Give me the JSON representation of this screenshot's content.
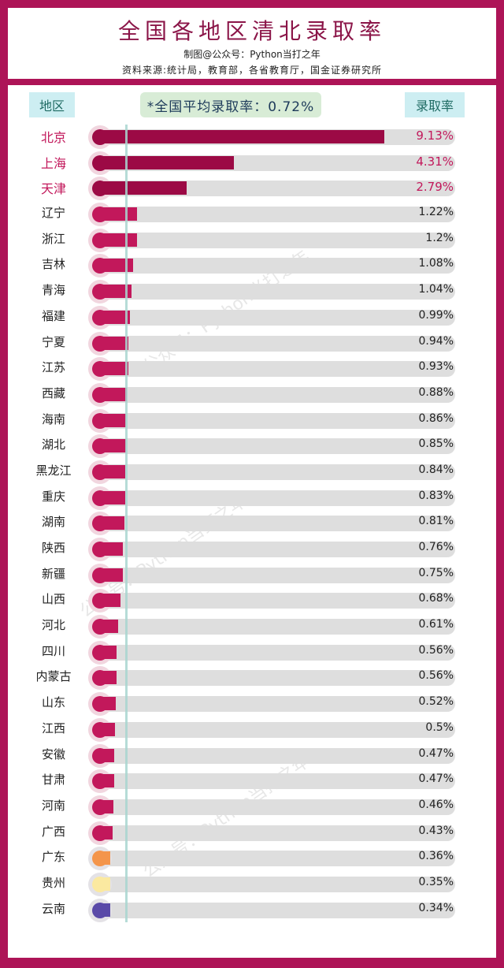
{
  "header": {
    "title": "全国各地区清北录取率",
    "credit": "制图@公众号：Python当打之年",
    "source": "资料来源:统计局，教育部，各省教育厅，国金证券研究所"
  },
  "columns": {
    "region": "地区",
    "rate": "录取率"
  },
  "average": {
    "label": "*全国平均录取率：0.72%",
    "value": 0.72
  },
  "watermark": "公众号：Python当打之年",
  "colors": {
    "frame": "#ad1457",
    "top3_bar": "#9c0a45",
    "default_bar": "#c2185b",
    "guangdong": "#f4954b",
    "guizhou": "#fbe9a0",
    "yunnan": "#5a4aa8",
    "avg_line": "#a9d6d0",
    "track": "#dedede"
  },
  "chart_data": {
    "type": "bar",
    "orientation": "horizontal",
    "title": "全国各地区清北录取率",
    "xlabel": "录取率",
    "ylabel": "地区",
    "unit": "%",
    "xlim": [
      0,
      9.5
    ],
    "reference_line": {
      "label": "全国平均录取率",
      "value": 0.72
    },
    "categories": [
      "北京",
      "上海",
      "天津",
      "辽宁",
      "浙江",
      "吉林",
      "青海",
      "福建",
      "宁夏",
      "江苏",
      "西藏",
      "海南",
      "湖北",
      "黑龙江",
      "重庆",
      "湖南",
      "陕西",
      "新疆",
      "山西",
      "河北",
      "四川",
      "内蒙古",
      "山东",
      "江西",
      "安徽",
      "甘肃",
      "河南",
      "广西",
      "广东",
      "贵州",
      "云南"
    ],
    "values": [
      9.13,
      4.31,
      2.79,
      1.22,
      1.2,
      1.08,
      1.04,
      0.99,
      0.94,
      0.93,
      0.88,
      0.86,
      0.85,
      0.84,
      0.83,
      0.81,
      0.76,
      0.75,
      0.68,
      0.61,
      0.56,
      0.56,
      0.52,
      0.5,
      0.47,
      0.47,
      0.46,
      0.43,
      0.36,
      0.35,
      0.34
    ],
    "value_labels": [
      "9.13%",
      "4.31%",
      "2.79%",
      "1.22%",
      "1.2%",
      "1.08%",
      "1.04%",
      "0.99%",
      "0.94%",
      "0.93%",
      "0.88%",
      "0.86%",
      "0.85%",
      "0.84%",
      "0.83%",
      "0.81%",
      "0.76%",
      "0.75%",
      "0.68%",
      "0.61%",
      "0.56%",
      "0.56%",
      "0.52%",
      "0.5%",
      "0.47%",
      "0.47%",
      "0.46%",
      "0.43%",
      "0.36%",
      "0.35%",
      "0.34%"
    ]
  }
}
